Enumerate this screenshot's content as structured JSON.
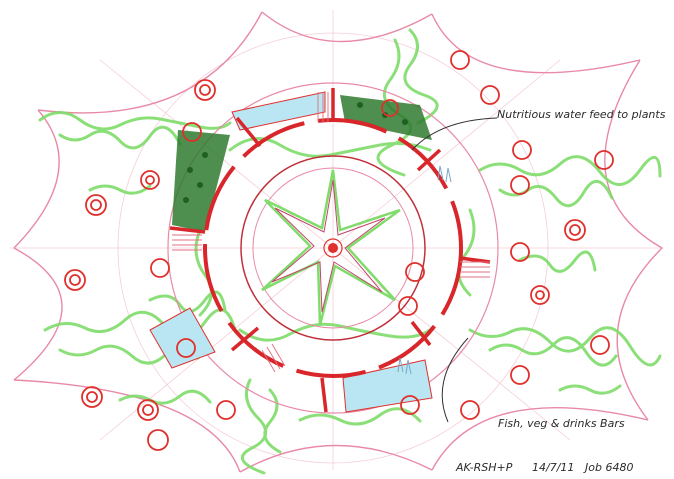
{
  "annotations": {
    "water_feed": "Nutritious water feed to plants",
    "bars": "Fish, veg & drinks Bars"
  },
  "signature": {
    "initials": "AK-RSH+P",
    "date": "14/7/11",
    "job": "Job 6480"
  },
  "colors": {
    "greenery": "#7fdc6a",
    "ring_red": "#d8262b",
    "pink_line": "#e88aa6",
    "water_blue": "#b9e6f2",
    "dark_green": "#2f7a2f",
    "table_red": "#e0302c"
  }
}
